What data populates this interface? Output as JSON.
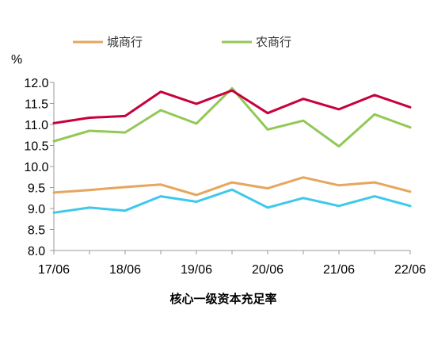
{
  "chart_data": {
    "type": "line",
    "title": "核心一级资本充足率",
    "ylabel": "%",
    "xlabel": "",
    "ylim": [
      8.0,
      12.0
    ],
    "yticks": [
      "12.0",
      "11.5",
      "11.0",
      "10.5",
      "10.0",
      "9.5",
      "9.0",
      "8.5",
      "8.0"
    ],
    "xticks": [
      "17/06",
      "18/06",
      "19/06",
      "20/06",
      "21/06",
      "22/06"
    ],
    "x": [
      "17/06",
      "17/12",
      "18/06",
      "18/12",
      "19/06",
      "19/12",
      "20/06",
      "20/12",
      "21/06",
      "21/12",
      "22/06"
    ],
    "grid": false,
    "legend_position": "top",
    "series": [
      {
        "name": "城商行",
        "color": "#E6A65D",
        "values": [
          9.38,
          9.44,
          9.51,
          9.57,
          9.32,
          9.62,
          9.48,
          9.74,
          9.55,
          9.62,
          9.4
        ]
      },
      {
        "name": "农商行",
        "color": "#92C857",
        "values": [
          10.6,
          10.85,
          10.81,
          11.34,
          11.02,
          11.86,
          10.88,
          11.09,
          10.48,
          11.24,
          10.93
        ]
      },
      {
        "name": "",
        "color": "#C8003C",
        "values": [
          11.03,
          11.16,
          11.2,
          11.78,
          11.49,
          11.81,
          11.27,
          11.61,
          11.36,
          11.7,
          11.41
        ]
      },
      {
        "name": "",
        "color": "#3FC8EC",
        "values": [
          8.9,
          9.02,
          8.95,
          9.29,
          9.16,
          9.45,
          9.02,
          9.25,
          9.06,
          9.29,
          9.06
        ]
      }
    ]
  }
}
